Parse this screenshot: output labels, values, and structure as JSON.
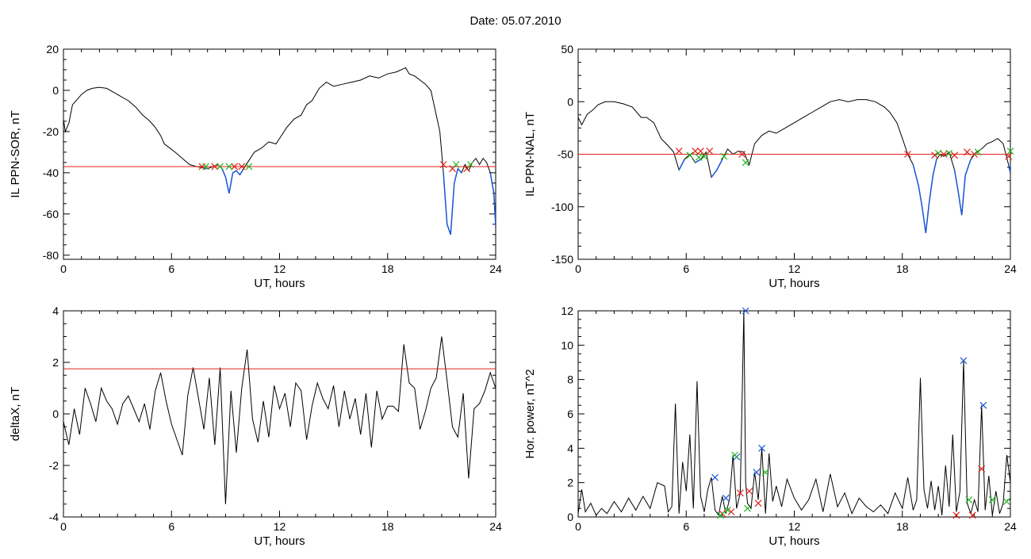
{
  "figure": {
    "title": "Date:  05.07.2010"
  },
  "colors": {
    "trace": "#000000",
    "threshold": "#e0201a",
    "below": "#1b56d6",
    "cross_red": "#e0201a",
    "cross_green": "#22b822",
    "cross_blue": "#1b56d6"
  },
  "chart_data": [
    {
      "id": "il-sor",
      "type": "line",
      "xlabel": "UT, hours",
      "ylabel": "IL PPN-SOR, nT",
      "xlim": [
        0,
        24
      ],
      "ylim": [
        -82,
        20
      ],
      "xticks": [
        0,
        6,
        12,
        18,
        24
      ],
      "yticks": [
        20,
        0,
        -20,
        -40,
        -60,
        -80
      ],
      "threshold": -37,
      "series": [
        {
          "x": [
            0,
            0.1,
            0.3,
            0.5,
            0.8,
            1.0,
            1.3,
            1.6,
            2.0,
            2.4,
            2.8,
            3.2,
            3.6,
            4.0,
            4.4,
            4.8,
            5.1,
            5.4,
            5.6,
            5.9,
            6.2,
            6.6,
            7.0,
            7.4,
            7.7,
            8.0,
            8.3,
            8.6,
            8.8,
            9.0,
            9.2,
            9.4,
            9.6,
            9.8,
            10.0,
            10.3,
            10.6,
            11.0,
            11.4,
            11.8,
            12.1,
            12.4,
            12.8,
            13.2,
            13.5,
            13.8,
            14.2,
            14.6,
            15.0,
            15.5,
            16.0,
            16.5,
            17.0,
            17.5,
            18.0,
            18.5,
            19.0,
            19.2,
            19.5,
            19.8,
            20.1,
            20.4,
            20.7,
            20.9,
            21.1,
            21.3,
            21.5,
            21.7,
            21.9,
            22.1,
            22.3,
            22.5,
            22.7,
            22.9,
            23.1,
            23.3,
            23.5,
            23.7,
            23.9,
            24
          ],
          "y": [
            -14,
            -20,
            -16,
            -7,
            -4,
            -2,
            0,
            1,
            1.5,
            1,
            -1,
            -3,
            -5,
            -8,
            -12,
            -15,
            -18,
            -22,
            -26,
            -28,
            -30,
            -33,
            -36,
            -37,
            -37.5,
            -38,
            -37,
            -36,
            -38,
            -42,
            -50,
            -40,
            -39,
            -41,
            -38,
            -34,
            -30,
            -28,
            -25,
            -26,
            -22,
            -18,
            -14,
            -12,
            -7,
            -5,
            1,
            4,
            2,
            3,
            4,
            5,
            7,
            6,
            8,
            9,
            11,
            8,
            7,
            5,
            3,
            0,
            -12,
            -20,
            -40,
            -65,
            -70,
            -45,
            -38,
            -40,
            -36,
            -39,
            -35,
            -33,
            -36,
            -33,
            -35,
            -40,
            -50,
            -66
          ]
        }
      ],
      "markers": {
        "red": [
          [
            7.7,
            -37
          ],
          [
            8.4,
            -37
          ],
          [
            9.5,
            -37
          ],
          [
            9.9,
            -37
          ],
          [
            21.1,
            -36
          ],
          [
            21.6,
            -38
          ],
          [
            22.4,
            -38
          ]
        ],
        "green": [
          [
            7.9,
            -37
          ],
          [
            8.7,
            -37
          ],
          [
            9.2,
            -37
          ],
          [
            10.3,
            -37
          ],
          [
            21.8,
            -36
          ],
          [
            22.6,
            -36
          ]
        ]
      }
    },
    {
      "id": "il-nal",
      "type": "line",
      "xlabel": "UT, hours",
      "ylabel": "IL PPN-NAL, nT",
      "xlim": [
        0,
        24
      ],
      "ylim": [
        -150,
        50
      ],
      "xticks": [
        0,
        6,
        12,
        18,
        24
      ],
      "yticks": [
        50,
        0,
        -50,
        -100,
        -150
      ],
      "threshold": -50,
      "series": [
        {
          "x": [
            0,
            0.2,
            0.5,
            0.8,
            1.1,
            1.5,
            2.0,
            2.5,
            3.0,
            3.5,
            3.8,
            4.2,
            4.6,
            5.0,
            5.3,
            5.6,
            5.9,
            6.2,
            6.5,
            6.8,
            7.1,
            7.4,
            7.7,
            8.0,
            8.3,
            8.6,
            8.9,
            9.2,
            9.5,
            9.8,
            10.2,
            10.6,
            11.0,
            11.5,
            12.0,
            12.5,
            13.0,
            13.5,
            14.0,
            14.5,
            15.0,
            15.5,
            16.0,
            16.5,
            17.0,
            17.3,
            17.7,
            18.0,
            18.3,
            18.6,
            18.9,
            19.1,
            19.3,
            19.5,
            19.7,
            19.9,
            20.1,
            20.3,
            20.6,
            20.9,
            21.1,
            21.3,
            21.5,
            21.8,
            22.1,
            22.4,
            22.7,
            23.0,
            23.3,
            23.6,
            23.9,
            24
          ],
          "y": [
            -15,
            -22,
            -12,
            -8,
            -3,
            0,
            0,
            -2,
            -5,
            -15,
            -15,
            -20,
            -35,
            -42,
            -48,
            -65,
            -55,
            -50,
            -58,
            -55,
            -48,
            -72,
            -65,
            -55,
            -45,
            -50,
            -47,
            -48,
            -60,
            -40,
            -32,
            -28,
            -30,
            -25,
            -20,
            -15,
            -10,
            -5,
            0,
            2,
            0,
            2,
            2,
            0,
            -5,
            -10,
            -20,
            -35,
            -50,
            -60,
            -80,
            -100,
            -125,
            -95,
            -70,
            -55,
            -50,
            -52,
            -48,
            -65,
            -85,
            -108,
            -70,
            -55,
            -48,
            -45,
            -40,
            -38,
            -35,
            -40,
            -60,
            -68
          ]
        }
      ],
      "markers": {
        "red": [
          [
            5.6,
            -47
          ],
          [
            6.5,
            -47
          ],
          [
            6.8,
            -47
          ],
          [
            7.3,
            -47
          ],
          [
            9.1,
            -50
          ],
          [
            18.3,
            -50
          ],
          [
            19.8,
            -51
          ],
          [
            20.3,
            -50
          ],
          [
            20.9,
            -51
          ],
          [
            21.6,
            -48
          ],
          [
            22.0,
            -50
          ],
          [
            23.9,
            -52
          ]
        ],
        "green": [
          [
            6.2,
            -51
          ],
          [
            6.7,
            -53
          ],
          [
            7.0,
            -52
          ],
          [
            8.1,
            -52
          ],
          [
            9.3,
            -58
          ],
          [
            20.0,
            -49
          ],
          [
            20.6,
            -49
          ],
          [
            22.2,
            -48
          ],
          [
            24.0,
            -47
          ]
        ]
      }
    },
    {
      "id": "delta-x",
      "type": "line",
      "xlabel": "UT, hours",
      "ylabel": "deltaX, nT",
      "xlim": [
        0,
        24
      ],
      "ylim": [
        -4,
        4
      ],
      "xticks": [
        0,
        6,
        12,
        18,
        24
      ],
      "yticks": [
        4,
        2,
        0,
        -2,
        -4
      ],
      "threshold": 1.75,
      "series": [
        {
          "x": [
            0,
            0.3,
            0.6,
            0.9,
            1.2,
            1.5,
            1.8,
            2.1,
            2.4,
            2.7,
            3.0,
            3.3,
            3.6,
            3.9,
            4.2,
            4.5,
            4.8,
            5.1,
            5.4,
            5.7,
            6.0,
            6.3,
            6.6,
            6.9,
            7.2,
            7.5,
            7.8,
            8.1,
            8.4,
            8.7,
            9.0,
            9.3,
            9.6,
            9.9,
            10.2,
            10.5,
            10.8,
            11.1,
            11.4,
            11.7,
            12.0,
            12.3,
            12.6,
            12.9,
            13.2,
            13.5,
            13.8,
            14.1,
            14.4,
            14.7,
            15.0,
            15.3,
            15.6,
            15.9,
            16.2,
            16.5,
            16.8,
            17.1,
            17.4,
            17.7,
            18.0,
            18.3,
            18.6,
            18.9,
            19.2,
            19.5,
            19.8,
            20.1,
            20.4,
            20.7,
            21.0,
            21.3,
            21.6,
            21.9,
            22.2,
            22.5,
            22.8,
            23.1,
            23.4,
            23.7,
            24
          ],
          "y": [
            -0.3,
            -1.2,
            0.2,
            -0.8,
            1.0,
            0.4,
            -0.3,
            1.0,
            0.5,
            0.2,
            -0.4,
            0.4,
            0.7,
            0.2,
            -0.3,
            0.4,
            -0.6,
            0.9,
            1.6,
            0.5,
            -0.4,
            -1.0,
            -1.6,
            0.7,
            1.8,
            0.6,
            -0.6,
            1.4,
            -1.2,
            1.8,
            -3.5,
            0.9,
            -1.5,
            1.0,
            2.5,
            -0.2,
            -1.1,
            0.5,
            -0.9,
            1.1,
            0.2,
            0.8,
            -0.5,
            1.2,
            0.9,
            -1.0,
            0.3,
            1.2,
            0.6,
            0.2,
            1.1,
            -0.5,
            0.9,
            -0.2,
            0.6,
            -0.8,
            0.8,
            -1.3,
            0.9,
            -0.2,
            0.3,
            0.3,
            0.1,
            2.7,
            1.2,
            1.0,
            -0.6,
            0.1,
            1.0,
            1.4,
            3.0,
            1.3,
            -0.5,
            -0.9,
            0.8,
            -2.5,
            0.2,
            0.4,
            0.9,
            1.6,
            1.0
          ]
        }
      ]
    },
    {
      "id": "hor-power",
      "type": "line",
      "xlabel": "UT, hours",
      "ylabel": "Hor. power, nT^2",
      "xlim": [
        0,
        24
      ],
      "ylim": [
        0,
        12
      ],
      "xticks": [
        0,
        6,
        12,
        18,
        24
      ],
      "yticks": [
        12,
        10,
        8,
        6,
        4,
        2,
        0
      ],
      "series": [
        {
          "x": [
            0,
            0.2,
            0.4,
            0.7,
            1.0,
            1.3,
            1.6,
            2.0,
            2.4,
            2.8,
            3.2,
            3.6,
            4.0,
            4.4,
            4.8,
            5.0,
            5.2,
            5.4,
            5.6,
            5.8,
            6.0,
            6.2,
            6.4,
            6.6,
            6.8,
            7.0,
            7.2,
            7.4,
            7.6,
            7.8,
            8.0,
            8.2,
            8.4,
            8.6,
            8.8,
            9.0,
            9.2,
            9.3,
            9.4,
            9.6,
            9.8,
            10.0,
            10.2,
            10.4,
            10.6,
            10.8,
            11.0,
            11.3,
            11.6,
            12.0,
            12.4,
            12.8,
            13.2,
            13.6,
            14.0,
            14.4,
            14.8,
            15.2,
            15.6,
            16.0,
            16.4,
            16.8,
            17.2,
            17.6,
            18.0,
            18.3,
            18.6,
            18.8,
            19.0,
            19.2,
            19.4,
            19.6,
            19.8,
            20.0,
            20.2,
            20.4,
            20.6,
            20.8,
            21.0,
            21.2,
            21.4,
            21.6,
            21.8,
            22.0,
            22.2,
            22.4,
            22.6,
            22.8,
            23.0,
            23.2,
            23.4,
            23.6,
            23.8,
            24
          ],
          "y": [
            0.2,
            1.6,
            0.3,
            0.8,
            0.1,
            0.5,
            0.2,
            0.9,
            0.3,
            1.1,
            0.4,
            1.2,
            0.5,
            2.0,
            1.8,
            0.3,
            0.6,
            6.6,
            0.2,
            3.2,
            1.5,
            4.8,
            0.5,
            7.9,
            1.2,
            0.3,
            1.6,
            2.3,
            0.4,
            0.1,
            1.2,
            0.2,
            1.0,
            3.6,
            0.5,
            1.4,
            12.0,
            2.0,
            0.8,
            0.5,
            2.6,
            1.0,
            4.0,
            0.2,
            3.7,
            0.9,
            1.8,
            0.6,
            2.2,
            1.1,
            0.4,
            1.0,
            2.2,
            0.3,
            2.5,
            0.6,
            1.4,
            0.2,
            1.1,
            0.6,
            0.3,
            0.7,
            0.2,
            1.4,
            0.5,
            2.3,
            0.4,
            1.0,
            8.1,
            1.6,
            0.5,
            2.1,
            0.4,
            1.8,
            0.1,
            3.0,
            0.6,
            4.8,
            0.3,
            1.5,
            9.1,
            0.8,
            0.2,
            1.0,
            0.3,
            6.5,
            0.4,
            2.4,
            0.1,
            1.5,
            0.2,
            0.8,
            3.6,
            2.0
          ]
        }
      ],
      "markers": {
        "blue": [
          [
            7.6,
            2.3
          ],
          [
            8.2,
            1.1
          ],
          [
            8.8,
            3.5
          ],
          [
            9.3,
            12.0
          ],
          [
            10.2,
            4.0
          ],
          [
            9.9,
            2.6
          ],
          [
            21.4,
            9.1
          ],
          [
            22.5,
            6.5
          ]
        ],
        "red": [
          [
            8.0,
            0.2
          ],
          [
            8.5,
            0.3
          ],
          [
            9.0,
            1.4
          ],
          [
            9.5,
            1.5
          ],
          [
            10.0,
            0.8
          ],
          [
            21.0,
            0.1
          ],
          [
            21.9,
            0.1
          ],
          [
            22.4,
            2.8
          ]
        ],
        "green": [
          [
            7.9,
            0.1
          ],
          [
            8.3,
            0.4
          ],
          [
            8.7,
            3.6
          ],
          [
            9.4,
            0.5
          ],
          [
            10.4,
            2.6
          ],
          [
            21.7,
            1.0
          ],
          [
            23.0,
            1.0
          ],
          [
            23.8,
            0.9
          ]
        ]
      }
    }
  ]
}
